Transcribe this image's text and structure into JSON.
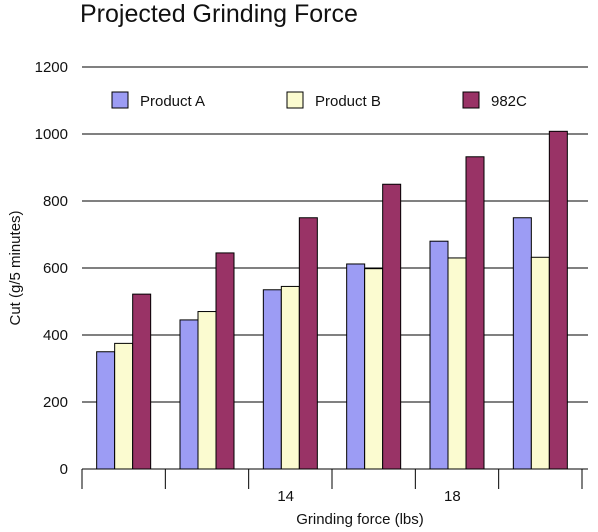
{
  "chart_data": {
    "type": "bar",
    "title": "Projected Grinding Force",
    "xlabel": "Grinding force (lbs)",
    "ylabel": "Cut (g/5 minutes)",
    "ylim": [
      0,
      1200
    ],
    "yticks": [
      0,
      200,
      400,
      600,
      800,
      1000,
      1200
    ],
    "xtick_labels": [
      "",
      "",
      "14",
      "",
      "18",
      "",
      ""
    ],
    "categories": [
      "",
      "",
      "",
      "",
      "",
      ""
    ],
    "grid": true,
    "legend_position": "top",
    "series": [
      {
        "name": "Product A",
        "color": "#9c9cf4",
        "values": [
          350,
          445,
          535,
          612,
          680,
          750
        ]
      },
      {
        "name": "Product B",
        "color": "#fbfbd0",
        "values": [
          375,
          470,
          545,
          598,
          630,
          632
        ]
      },
      {
        "name": "982C",
        "color": "#993366",
        "values": [
          522,
          645,
          750,
          850,
          932,
          1008
        ]
      }
    ]
  }
}
